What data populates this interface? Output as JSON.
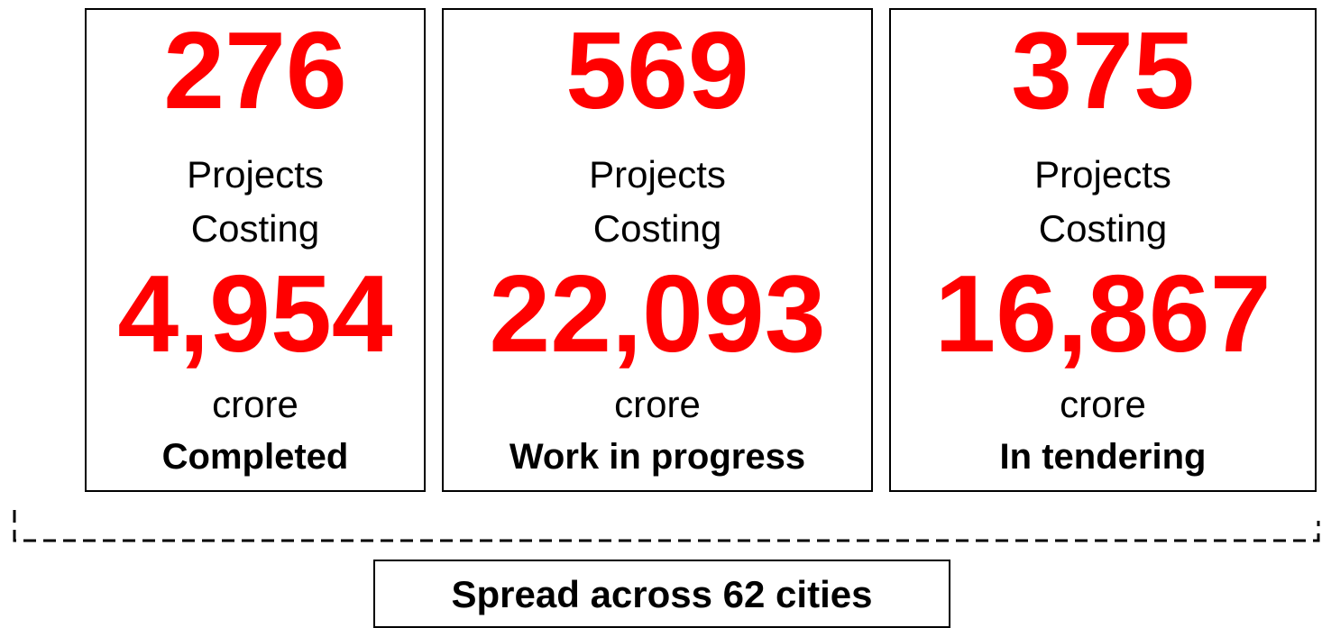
{
  "cards": [
    {
      "count": "276",
      "line1": "Projects",
      "line2": "Costing",
      "amount": "4,954",
      "unit": "crore",
      "status": "Completed"
    },
    {
      "count": "569",
      "line1": "Projects",
      "line2": "Costing",
      "amount": "22,093",
      "unit": "crore",
      "status": "Work in progress"
    },
    {
      "count": "375",
      "line1": "Projects",
      "line2": "Costing",
      "amount": "16,867",
      "unit": "crore",
      "status": "In tendering"
    }
  ],
  "footer": "Spread across 62 cities"
}
